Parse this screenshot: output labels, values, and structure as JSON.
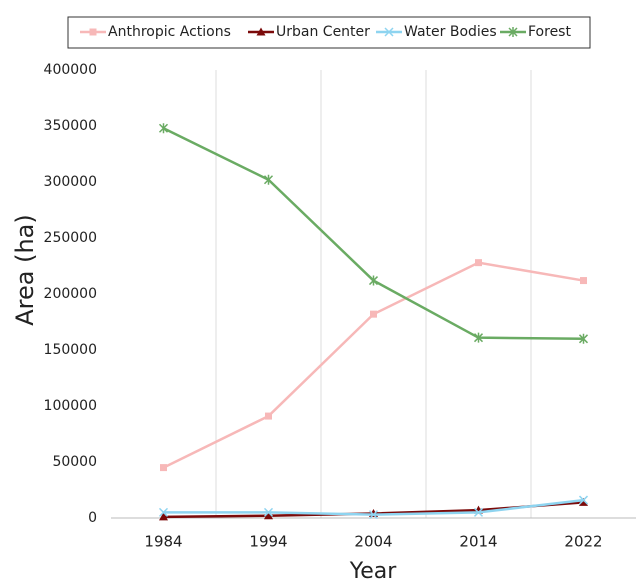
{
  "chart_data": {
    "type": "line",
    "x_label": "Year",
    "y_label": "Area (ha)",
    "categories": [
      "1984",
      "1994",
      "2004",
      "2014",
      "2022"
    ],
    "series": [
      {
        "name": "Anthropic Actions",
        "color": "#f7b8b8",
        "marker": "square",
        "values": [
          45000,
          91000,
          182000,
          228000,
          212000
        ]
      },
      {
        "name": "Urban Center",
        "color": "#7b0a0a",
        "marker": "triangle",
        "values": [
          1000,
          2000,
          4000,
          7000,
          14000
        ]
      },
      {
        "name": "Water Bodies",
        "color": "#8ed4f0",
        "marker": "x",
        "values": [
          5000,
          5000,
          3000,
          5000,
          16000
        ]
      },
      {
        "name": "Forest",
        "color": "#6aab63",
        "marker": "star",
        "values": [
          348000,
          302000,
          212000,
          161000,
          160000
        ]
      }
    ],
    "ylim": [
      0,
      400000
    ],
    "yticks": [
      0,
      50000,
      100000,
      150000,
      200000,
      250000,
      300000,
      350000,
      400000
    ],
    "grid": "x",
    "legend": "top"
  }
}
